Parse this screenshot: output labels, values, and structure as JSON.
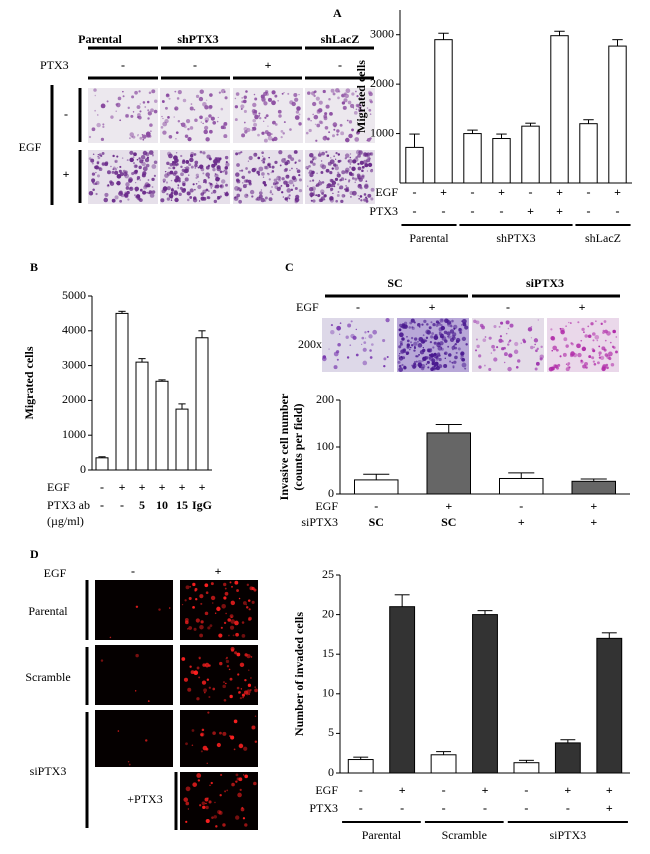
{
  "chart_data": [
    {
      "type": "bar",
      "panel": "A",
      "ylabel": [
        "Migrated cells"
      ],
      "ylim": [
        0,
        3500
      ],
      "yticks": [
        1000,
        2000,
        3000
      ],
      "values": [
        720,
        2900,
        1000,
        900,
        1150,
        2980,
        1200,
        2770
      ],
      "errors": [
        270,
        130,
        70,
        90,
        60,
        90,
        80,
        130
      ],
      "colors": [
        "#ffffff",
        "#ffffff",
        "#ffffff",
        "#ffffff",
        "#ffffff",
        "#ffffff",
        "#ffffff",
        "#ffffff"
      ],
      "rows": [
        {
          "label": "EGF",
          "values": [
            "-",
            "+",
            "-",
            "+",
            "-",
            "+",
            "-",
            "+"
          ]
        },
        {
          "label": "PTX3",
          "values": [
            "-",
            "-",
            "-",
            "-",
            "+",
            "+",
            "-",
            "-"
          ]
        }
      ],
      "groups": [
        {
          "label": "Parental",
          "from": 0,
          "to": 1
        },
        {
          "label": "shPTX3",
          "from": 2,
          "to": 5
        },
        {
          "label": "shLacZ",
          "from": 6,
          "to": 7
        }
      ]
    },
    {
      "type": "bar",
      "panel": "B",
      "ylabel": [
        "Migrated cells"
      ],
      "ylim": [
        0,
        5000
      ],
      "yticks": [
        0,
        1000,
        2000,
        3000,
        4000,
        5000
      ],
      "values": [
        350,
        4500,
        3100,
        2550,
        1750,
        3800
      ],
      "errors": [
        30,
        60,
        100,
        40,
        150,
        200
      ],
      "colors": [
        "#ffffff",
        "#ffffff",
        "#ffffff",
        "#ffffff",
        "#ffffff",
        "#ffffff"
      ],
      "rows": [
        {
          "label": "EGF",
          "values": [
            "-",
            "+",
            "+",
            "+",
            "+",
            "+"
          ]
        },
        {
          "label": "PTX3 ab",
          "values": [
            "-",
            "-",
            "5",
            "10",
            "15",
            "IgG"
          ]
        },
        {
          "label": "(µg/ml)",
          "values": []
        }
      ],
      "groups": []
    },
    {
      "type": "bar",
      "panel": "C",
      "ylabel": [
        "Invasive cell number",
        "(counts  per field)"
      ],
      "ylim": [
        0,
        200
      ],
      "yticks": [
        0,
        100,
        200
      ],
      "values": [
        30,
        130,
        33,
        27
      ],
      "errors": [
        12,
        18,
        12,
        5
      ],
      "colors": [
        "#ffffff",
        "#666666",
        "#ffffff",
        "#666666"
      ],
      "rows": [
        {
          "label": "EGF",
          "values": [
            "-",
            "+",
            "-",
            "+"
          ]
        },
        {
          "label": "siPTX3",
          "values": [
            "SC",
            "SC",
            "+",
            "+"
          ]
        }
      ],
      "groups": []
    },
    {
      "type": "bar",
      "panel": "D",
      "ylabel": [
        "Number of invaded cells"
      ],
      "ylim": [
        0,
        25
      ],
      "yticks": [
        0,
        5,
        10,
        15,
        20,
        25
      ],
      "values": [
        1.7,
        21,
        2.3,
        20,
        1.3,
        3.8,
        17
      ],
      "errors": [
        0.3,
        1.5,
        0.4,
        0.5,
        0.3,
        0.4,
        0.7
      ],
      "colors": [
        "#ffffff",
        "#333333",
        "#ffffff",
        "#333333",
        "#ffffff",
        "#333333",
        "#333333"
      ],
      "rows": [
        {
          "label": "EGF",
          "values": [
            "-",
            "+",
            "-",
            "+",
            "-",
            "+",
            "+"
          ]
        },
        {
          "label": "PTX3",
          "values": [
            "-",
            "-",
            "-",
            "-",
            "-",
            "-",
            "+"
          ]
        }
      ],
      "groups": [
        {
          "label": "Parental",
          "from": 0,
          "to": 1
        },
        {
          "label": "Scramble",
          "from": 2,
          "to": 3
        },
        {
          "label": "siPTX3",
          "from": 4,
          "to": 6
        }
      ]
    }
  ],
  "image_panels": {
    "a": {
      "columns": [
        "Parental",
        "shPTX3",
        "shLacZ"
      ],
      "ptx3_label": "PTX3",
      "ptx3": [
        "-",
        "-",
        "+",
        "-"
      ],
      "egf_label": "EGF",
      "egf": [
        "-",
        "+"
      ]
    },
    "c": {
      "columns": [
        "SC",
        "siPTX3"
      ],
      "egf_label": "EGF",
      "egf": [
        "-",
        "+",
        "-",
        "+"
      ],
      "magnification": "200x"
    },
    "d": {
      "egf_label": "EGF",
      "egf": [
        "-",
        "+"
      ],
      "rows": [
        "Parental",
        "Scramble",
        "siPTX3"
      ],
      "rescue": "+PTX3"
    }
  }
}
